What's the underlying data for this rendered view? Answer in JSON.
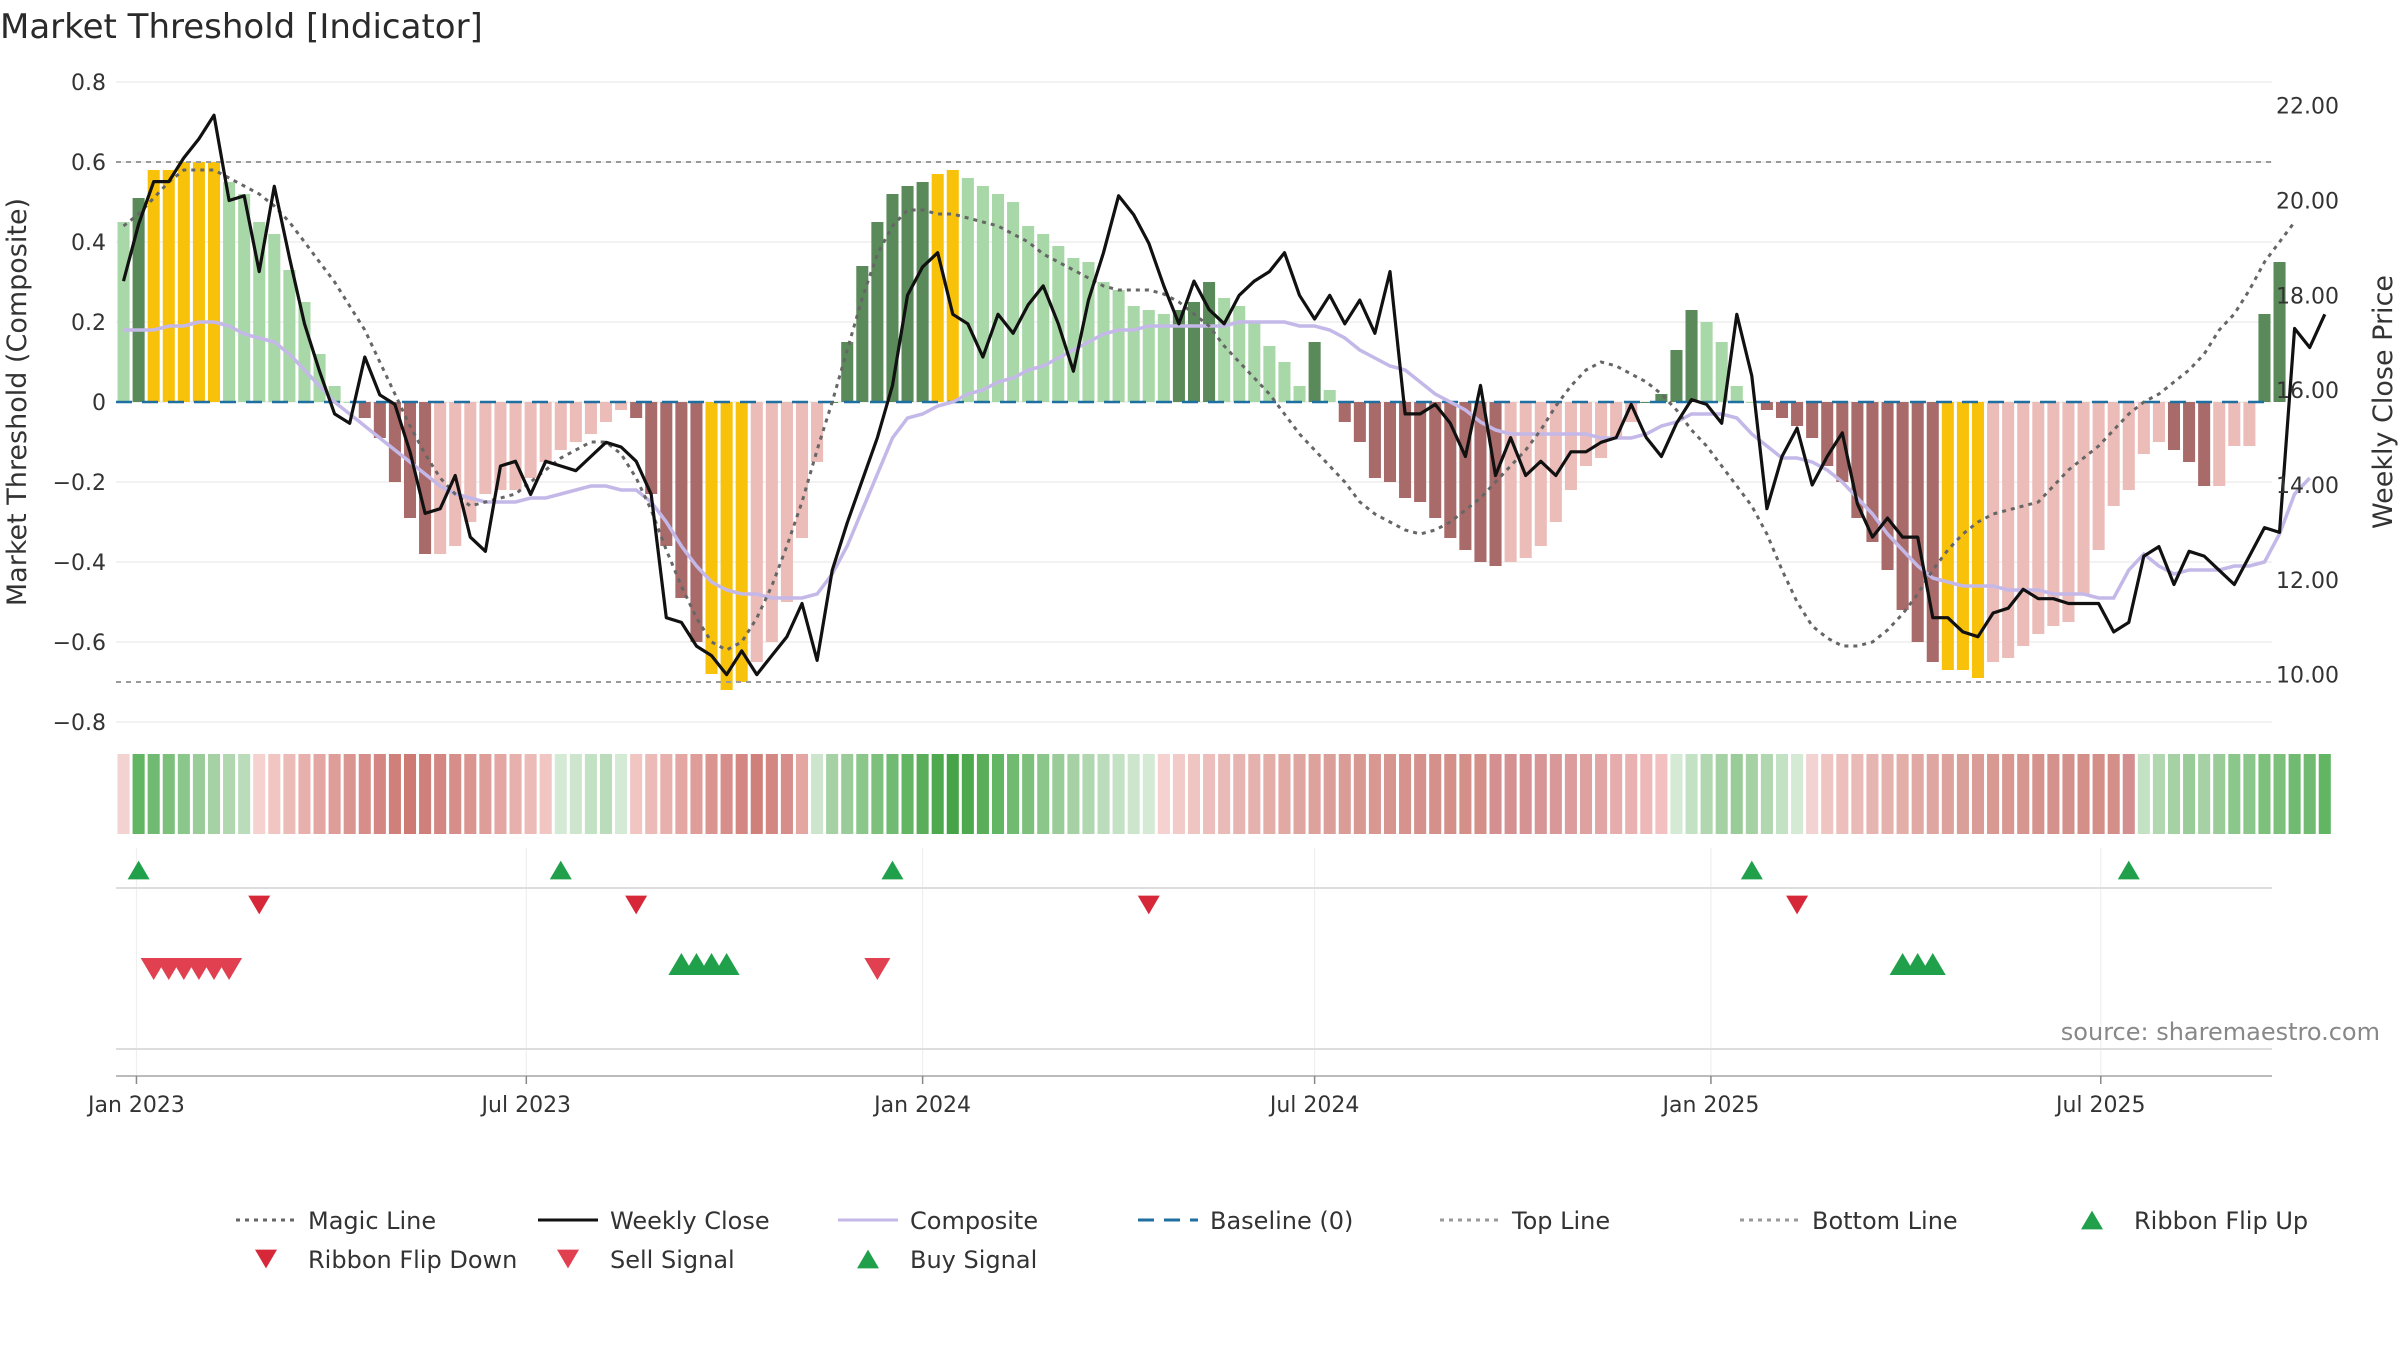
{
  "title": "Market Threshold [Indicator]",
  "source": "source: sharemaestro.com",
  "colors": {
    "green_light": "#a9d8a8",
    "green_dark": "#5a8a5a",
    "red_light": "#ecbcb8",
    "red_dark": "#a86b6a",
    "yellow": "#f9c20a",
    "close": "#111111",
    "composite": "#c4b8e8",
    "magic": "#666666",
    "baseline": "#1f6fa0",
    "refline": "#999999",
    "signal_green": "#21a04b",
    "signal_red": "#d7283a"
  },
  "chart_data": {
    "type": "bar",
    "dates": [
      "2022-12-26",
      "2023-01-02",
      "2023-01-09",
      "2023-01-16",
      "2023-01-23",
      "2023-01-30",
      "2023-02-06",
      "2023-02-13",
      "2023-02-20",
      "2023-02-27",
      "2023-03-06",
      "2023-03-13",
      "2023-03-20",
      "2023-03-27",
      "2023-04-03",
      "2023-04-10",
      "2023-04-17",
      "2023-04-24",
      "2023-05-01",
      "2023-05-08",
      "2023-05-15",
      "2023-05-22",
      "2023-05-29",
      "2023-06-05",
      "2023-06-12",
      "2023-06-19",
      "2023-06-26",
      "2023-07-03",
      "2023-07-10",
      "2023-07-17",
      "2023-07-24",
      "2023-07-31",
      "2023-08-07",
      "2023-08-14",
      "2023-08-21",
      "2023-08-28",
      "2023-09-04",
      "2023-09-11",
      "2023-09-18",
      "2023-09-25",
      "2023-10-02",
      "2023-10-09",
      "2023-10-16",
      "2023-10-23",
      "2023-10-30",
      "2023-11-06",
      "2023-11-13",
      "2023-11-20",
      "2023-11-27",
      "2023-12-04",
      "2023-12-11",
      "2023-12-18",
      "2023-12-25",
      "2024-01-01",
      "2024-01-08",
      "2024-01-15",
      "2024-01-22",
      "2024-01-29",
      "2024-02-05",
      "2024-02-12",
      "2024-02-19",
      "2024-02-26",
      "2024-03-04",
      "2024-03-11",
      "2024-03-18",
      "2024-03-25",
      "2024-04-01",
      "2024-04-08",
      "2024-04-15",
      "2024-04-22",
      "2024-04-29",
      "2024-05-06",
      "2024-05-13",
      "2024-05-20",
      "2024-05-27",
      "2024-06-03",
      "2024-06-10",
      "2024-06-17",
      "2024-06-24",
      "2024-07-01",
      "2024-07-08",
      "2024-07-15",
      "2024-07-22",
      "2024-07-29",
      "2024-08-05",
      "2024-08-12",
      "2024-08-19",
      "2024-08-26",
      "2024-09-02",
      "2024-09-09",
      "2024-09-16",
      "2024-09-23",
      "2024-09-30",
      "2024-10-07",
      "2024-10-14",
      "2024-10-21",
      "2024-10-28",
      "2024-11-04",
      "2024-11-11",
      "2024-11-18",
      "2024-11-25",
      "2024-12-02",
      "2024-12-09",
      "2024-12-16",
      "2024-12-23",
      "2024-12-30",
      "2025-01-06",
      "2025-01-13",
      "2025-01-20",
      "2025-01-27",
      "2025-02-03",
      "2025-02-10",
      "2025-02-17",
      "2025-02-24",
      "2025-03-03",
      "2025-03-10",
      "2025-03-17",
      "2025-03-24",
      "2025-03-31",
      "2025-04-07",
      "2025-04-14",
      "2025-04-21",
      "2025-04-28",
      "2025-05-05",
      "2025-05-12",
      "2025-05-19",
      "2025-05-26",
      "2025-06-02",
      "2025-06-09",
      "2025-06-16",
      "2025-06-23",
      "2025-06-30",
      "2025-07-07",
      "2025-07-14",
      "2025-07-21",
      "2025-07-28",
      "2025-08-04",
      "2025-08-11",
      "2025-08-18",
      "2025-08-25",
      "2025-09-01",
      "2025-09-08",
      "2025-09-15"
    ],
    "composite_bars": [
      0.45,
      0.51,
      0.58,
      0.58,
      0.6,
      0.6,
      0.6,
      0.55,
      0.52,
      0.45,
      0.42,
      0.33,
      0.25,
      0.12,
      0.04,
      0,
      -0.04,
      -0.09,
      -0.2,
      -0.29,
      -0.38,
      -0.38,
      -0.36,
      -0.3,
      -0.23,
      -0.22,
      -0.22,
      -0.19,
      -0.15,
      -0.12,
      -0.1,
      -0.08,
      -0.05,
      -0.02,
      -0.04,
      -0.23,
      -0.36,
      -0.49,
      -0.6,
      -0.68,
      -0.72,
      -0.7,
      -0.65,
      -0.6,
      -0.5,
      -0.34,
      -0.15,
      0,
      0.15,
      0.34,
      0.45,
      0.52,
      0.54,
      0.55,
      0.57,
      0.58,
      0.56,
      0.54,
      0.52,
      0.5,
      0.44,
      0.42,
      0.39,
      0.36,
      0.35,
      0.3,
      0.28,
      0.24,
      0.23,
      0.22,
      0.23,
      0.25,
      0.3,
      0.26,
      0.24,
      0.2,
      0.14,
      0.1,
      0.04,
      0.15,
      0.03,
      -0.05,
      -0.1,
      -0.19,
      -0.2,
      -0.24,
      -0.25,
      -0.29,
      -0.34,
      -0.37,
      -0.4,
      -0.41,
      -0.4,
      -0.39,
      -0.36,
      -0.3,
      -0.22,
      -0.16,
      -0.14,
      -0.09,
      -0.05,
      0,
      0.02,
      0.13,
      0.23,
      0.2,
      0.15,
      0.04,
      0,
      -0.02,
      -0.04,
      -0.06,
      -0.09,
      -0.16,
      -0.2,
      -0.29,
      -0.35,
      -0.42,
      -0.52,
      -0.6,
      -0.65,
      -0.67,
      -0.67,
      -0.69,
      -0.65,
      -0.64,
      -0.61,
      -0.58,
      -0.56,
      -0.55,
      -0.48,
      -0.37,
      -0.26,
      -0.22,
      -0.13,
      -0.1,
      -0.12,
      -0.15,
      -0.21,
      -0.21,
      -0.11,
      -0.11,
      0.22,
      0.35
    ],
    "weekly_close": [
      18.3,
      19.5,
      20.4,
      20.4,
      20.9,
      21.3,
      21.8,
      20.0,
      20.1,
      18.5,
      20.3,
      18.8,
      17.4,
      16.4,
      15.5,
      15.3,
      16.7,
      15.9,
      15.7,
      14.7,
      13.4,
      13.5,
      14.2,
      12.9,
      12.6,
      14.4,
      14.5,
      13.8,
      14.5,
      14.4,
      14.3,
      14.6,
      14.9,
      14.8,
      14.5,
      13.8,
      11.2,
      11.1,
      10.6,
      10.4,
      10.0,
      10.5,
      10.0,
      10.4,
      10.8,
      11.5,
      10.3,
      12.2,
      13.2,
      14.1,
      15.0,
      16.1,
      18.0,
      18.6,
      18.9,
      17.6,
      17.4,
      16.7,
      17.6,
      17.2,
      17.8,
      18.2,
      17.4,
      16.4,
      17.9,
      18.9,
      20.1,
      19.7,
      19.1,
      18.2,
      17.4,
      18.3,
      17.7,
      17.4,
      18.0,
      18.3,
      18.5,
      18.9,
      18.0,
      17.5,
      18.0,
      17.4,
      17.9,
      17.2,
      18.5,
      15.5,
      15.5,
      15.7,
      15.3,
      14.6,
      16.1,
      14.2,
      15.0,
      14.2,
      14.5,
      14.2,
      14.7,
      14.7,
      14.9,
      15.0,
      15.7,
      15.0,
      14.6,
      15.3,
      15.8,
      15.7,
      15.3,
      17.6,
      16.3,
      13.5,
      14.6,
      15.2,
      14.0,
      14.6,
      15.1,
      13.6,
      12.9,
      13.3,
      12.9,
      12.9,
      11.2,
      11.2,
      10.9,
      10.8,
      11.3,
      11.4,
      11.8,
      11.6,
      11.6,
      11.5,
      11.5,
      11.5,
      10.9,
      11.1,
      12.5,
      12.7,
      11.9,
      12.6,
      12.5,
      12.2,
      11.9,
      12.5,
      13.1,
      13.0,
      17.3,
      16.9,
      17.6
    ],
    "composite_line": [
      0.18,
      0.18,
      0.18,
      0.19,
      0.19,
      0.2,
      0.2,
      0.19,
      0.17,
      0.16,
      0.15,
      0.12,
      0.08,
      0.04,
      0.0,
      -0.03,
      -0.06,
      -0.09,
      -0.12,
      -0.15,
      -0.18,
      -0.21,
      -0.23,
      -0.24,
      -0.25,
      -0.25,
      -0.25,
      -0.24,
      -0.24,
      -0.23,
      -0.22,
      -0.21,
      -0.21,
      -0.22,
      -0.22,
      -0.25,
      -0.3,
      -0.36,
      -0.41,
      -0.45,
      -0.47,
      -0.48,
      -0.48,
      -0.49,
      -0.49,
      -0.49,
      -0.48,
      -0.43,
      -0.36,
      -0.27,
      -0.18,
      -0.09,
      -0.04,
      -0.03,
      -0.01,
      0.0,
      0.02,
      0.03,
      0.05,
      0.06,
      0.08,
      0.09,
      0.11,
      0.13,
      0.15,
      0.17,
      0.18,
      0.18,
      0.19,
      0.19,
      0.19,
      0.19,
      0.19,
      0.19,
      0.2,
      0.2,
      0.2,
      0.2,
      0.19,
      0.19,
      0.18,
      0.16,
      0.13,
      0.11,
      0.09,
      0.08,
      0.05,
      0.02,
      0.0,
      -0.02,
      -0.05,
      -0.07,
      -0.08,
      -0.08,
      -0.08,
      -0.08,
      -0.08,
      -0.08,
      -0.09,
      -0.09,
      -0.09,
      -0.08,
      -0.06,
      -0.05,
      -0.03,
      -0.03,
      -0.03,
      -0.04,
      -0.08,
      -0.11,
      -0.14,
      -0.14,
      -0.15,
      -0.17,
      -0.2,
      -0.24,
      -0.28,
      -0.33,
      -0.37,
      -0.41,
      -0.44,
      -0.45,
      -0.46,
      -0.46,
      -0.46,
      -0.47,
      -0.47,
      -0.47,
      -0.48,
      -0.48,
      -0.48,
      -0.49,
      -0.49,
      -0.42,
      -0.38,
      -0.41,
      -0.43,
      -0.42,
      -0.42,
      -0.42,
      -0.41,
      -0.41,
      -0.4,
      -0.33,
      -0.23,
      -0.19
    ],
    "magic_line": [
      0.44,
      0.47,
      0.51,
      0.55,
      0.58,
      0.58,
      0.58,
      0.56,
      0.54,
      0.52,
      0.49,
      0.45,
      0.4,
      0.35,
      0.3,
      0.24,
      0.18,
      0.1,
      0.02,
      -0.06,
      -0.13,
      -0.19,
      -0.23,
      -0.26,
      -0.25,
      -0.24,
      -0.23,
      -0.2,
      -0.17,
      -0.14,
      -0.12,
      -0.1,
      -0.1,
      -0.13,
      -0.19,
      -0.27,
      -0.37,
      -0.46,
      -0.54,
      -0.6,
      -0.62,
      -0.6,
      -0.54,
      -0.46,
      -0.36,
      -0.25,
      -0.12,
      0.0,
      0.13,
      0.26,
      0.37,
      0.44,
      0.48,
      0.48,
      0.47,
      0.47,
      0.46,
      0.45,
      0.44,
      0.42,
      0.4,
      0.37,
      0.35,
      0.33,
      0.31,
      0.29,
      0.28,
      0.28,
      0.28,
      0.27,
      0.25,
      0.22,
      0.19,
      0.14,
      0.1,
      0.06,
      0.02,
      -0.03,
      -0.08,
      -0.12,
      -0.16,
      -0.2,
      -0.25,
      -0.28,
      -0.3,
      -0.32,
      -0.33,
      -0.32,
      -0.3,
      -0.27,
      -0.24,
      -0.2,
      -0.16,
      -0.12,
      -0.07,
      -0.01,
      0.04,
      0.08,
      0.1,
      0.09,
      0.07,
      0.05,
      0.02,
      -0.02,
      -0.07,
      -0.11,
      -0.16,
      -0.21,
      -0.26,
      -0.33,
      -0.42,
      -0.5,
      -0.56,
      -0.59,
      -0.61,
      -0.61,
      -0.6,
      -0.57,
      -0.53,
      -0.48,
      -0.42,
      -0.37,
      -0.33,
      -0.3,
      -0.28,
      -0.27,
      -0.26,
      -0.25,
      -0.21,
      -0.17,
      -0.14,
      -0.11,
      -0.07,
      -0.03,
      0.0,
      0.02,
      0.05,
      0.08,
      0.12,
      0.18,
      0.22,
      0.28,
      0.35,
      0.4,
      0.45
    ],
    "ribbon_colors": [
      "#f2d3d1",
      "#62b562",
      "#71ba71",
      "#7cc07c",
      "#8bc68b",
      "#99cc99",
      "#a5d1a5",
      "#b0d7b0",
      "#badcba",
      "#f5d1cf",
      "#f1c5c2",
      "#ecbab7",
      "#e8b0ac",
      "#e3a6a2",
      "#df9d99",
      "#db9591",
      "#d78d89",
      "#d38682",
      "#d0807b",
      "#cd7a75",
      "#d0807b",
      "#d38682",
      "#d78d89",
      "#db9591",
      "#df9d99",
      "#e3a6a2",
      "#e8b0ac",
      "#ecbab7",
      "#f1c5c2",
      "#d5ead5",
      "#cce5cc",
      "#c3e1c3",
      "#bbdcbb",
      "#d5ead5",
      "#f1c5c2",
      "#ecbab7",
      "#e8b0ac",
      "#e3a6a2",
      "#df9d99",
      "#db9591",
      "#d78d89",
      "#d38682",
      "#d0807b",
      "#d38682",
      "#d78d89",
      "#e3a6a2",
      "#cce5cc",
      "#a5d1a5",
      "#99cc99",
      "#8bc68b",
      "#7cc07c",
      "#71ba71",
      "#62b562",
      "#5aae5a",
      "#4ea84e",
      "#47a347",
      "#4ea84e",
      "#5aae5a",
      "#62b562",
      "#71ba71",
      "#7cc07c",
      "#8bc68b",
      "#99cc99",
      "#a5d1a5",
      "#b0d7b0",
      "#badcba",
      "#c3e1c3",
      "#cce5cc",
      "#d5ead5",
      "#f5d1cf",
      "#f2cbc8",
      "#efc5c2",
      "#ecbfbc",
      "#e9bab6",
      "#e7b5b1",
      "#e5b1ac",
      "#e3ada8",
      "#e1a9a4",
      "#dfa5a0",
      "#dda29c",
      "#db9f99",
      "#da9c96",
      "#d99993",
      "#d89791",
      "#d7958f",
      "#d6938d",
      "#d5918b",
      "#d4908a",
      "#d48f89",
      "#d48f89",
      "#d48f89",
      "#d49090",
      "#d59191",
      "#d69292",
      "#d79595",
      "#d99898",
      "#dc9c9c",
      "#dfa0a0",
      "#e2a5a5",
      "#e6abab",
      "#eab1b1",
      "#eeb8b8",
      "#f2c0c0",
      "#d5ead5",
      "#c3e1c3",
      "#b0d7b0",
      "#a5d1a5",
      "#99cc99",
      "#a5d1a5",
      "#b0d7b0",
      "#c3e1c3",
      "#d5ead5",
      "#f2d3d1",
      "#efc5c2",
      "#ecbfbc",
      "#e9bab6",
      "#e7b5b1",
      "#e5b1ac",
      "#e3ada8",
      "#e1a9a4",
      "#dfa5a0",
      "#dda29c",
      "#db9f99",
      "#da9c96",
      "#d99993",
      "#d89791",
      "#d7958f",
      "#d6938d",
      "#d5918b",
      "#d4908a",
      "#d48f89",
      "#d48f89",
      "#d48f89",
      "#d49090",
      "#c3e1c3",
      "#b0d7b0",
      "#a5d1a5",
      "#99cc99",
      "#a5d1a5",
      "#99cc99",
      "#8bc68b",
      "#8bc68b",
      "#7cc07c",
      "#7cc07c",
      "#71ba71",
      "#71ba71",
      "#62b562"
    ],
    "ribbon_flip_up_idx": [
      1,
      29,
      51,
      108,
      133
    ],
    "ribbon_flip_down_idx": [
      9,
      34,
      68,
      111
    ],
    "sell_signal_idx": [
      2,
      3,
      4,
      5,
      6,
      7,
      50
    ],
    "buy_signal_idx": [
      37,
      38,
      39,
      40,
      118,
      119,
      120
    ],
    "top_line": 0.6,
    "bottom_line": -0.7,
    "baseline": 0,
    "y_left": {
      "label": "Market Threshold (Composite)",
      "range": [
        -0.8,
        0.8
      ],
      "ticks": [
        "0.8",
        "0.6",
        "0.4",
        "0.2",
        "0",
        "−0.2",
        "−0.4",
        "−0.6",
        "−0.8"
      ],
      "tick_values": [
        0.8,
        0.6,
        0.4,
        0.2,
        0,
        -0.2,
        -0.4,
        -0.6,
        -0.8
      ]
    },
    "y_right": {
      "label": "Weekly Close Price",
      "range": [
        9.0,
        22.5
      ],
      "ticks": [
        "22.00",
        "20.00",
        "18.00",
        "16.00",
        "14.00",
        "12.00",
        "10.00"
      ],
      "tick_values": [
        22,
        20,
        18,
        16,
        14,
        12,
        10
      ]
    },
    "x_ticks": [
      {
        "label": "Jan 2023",
        "date": "2023-01-01"
      },
      {
        "label": "Jul 2023",
        "date": "2023-07-01"
      },
      {
        "label": "Jan 2024",
        "date": "2024-01-01"
      },
      {
        "label": "Jul 2024",
        "date": "2024-07-01"
      },
      {
        "label": "Jan 2025",
        "date": "2025-01-01"
      },
      {
        "label": "Jul 2025",
        "date": "2025-07-01"
      }
    ],
    "legend": [
      {
        "name": "Magic Line",
        "kind": "dotted",
        "color": "#666666"
      },
      {
        "name": "Weekly Close",
        "kind": "solid",
        "color": "#111111"
      },
      {
        "name": "Composite",
        "kind": "solid",
        "color": "#c4b8e8"
      },
      {
        "name": "Baseline (0)",
        "kind": "dashed",
        "color": "#1f6fa0"
      },
      {
        "name": "Top Line",
        "kind": "dotted",
        "color": "#999999"
      },
      {
        "name": "Bottom Line",
        "kind": "dotted",
        "color": "#999999"
      },
      {
        "name": "Ribbon Flip Up",
        "kind": "tri-up",
        "color": "#21a04b"
      },
      {
        "name": "Ribbon Flip Down",
        "kind": "tri-down",
        "color": "#d7283a"
      },
      {
        "name": "Sell Signal",
        "kind": "tri-down",
        "color": "#e0404f"
      },
      {
        "name": "Buy Signal",
        "kind": "tri-up",
        "color": "#21a04b"
      }
    ],
    "legend_placement": "bottom",
    "grid": true
  }
}
